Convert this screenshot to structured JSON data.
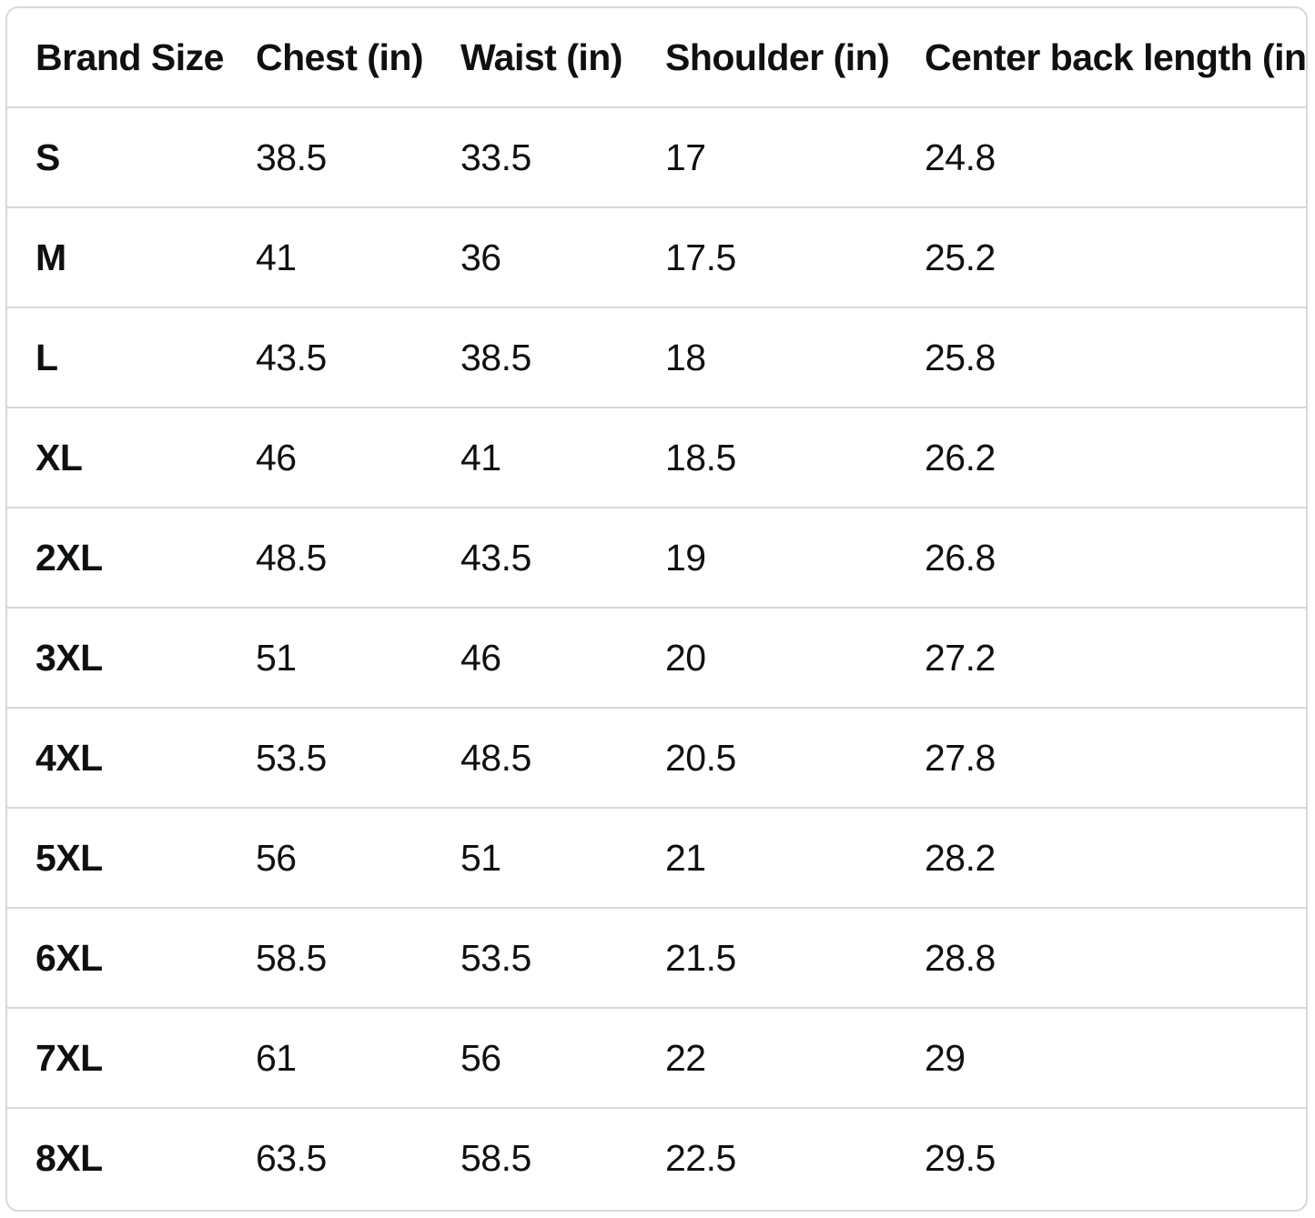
{
  "table": {
    "headers": [
      "Brand Size",
      "Chest (in)",
      "Waist (in)",
      "Shoulder (in)",
      "Center back length (in)"
    ],
    "rows": [
      [
        "S",
        "38.5",
        "33.5",
        "17",
        "24.8"
      ],
      [
        "M",
        "41",
        "36",
        "17.5",
        "25.2"
      ],
      [
        "L",
        "43.5",
        "38.5",
        "18",
        "25.8"
      ],
      [
        "XL",
        "46",
        "41",
        "18.5",
        "26.2"
      ],
      [
        "2XL",
        "48.5",
        "43.5",
        "19",
        "26.8"
      ],
      [
        "3XL",
        "51",
        "46",
        "20",
        "27.2"
      ],
      [
        "4XL",
        "53.5",
        "48.5",
        "20.5",
        "27.8"
      ],
      [
        "5XL",
        "56",
        "51",
        "21",
        "28.2"
      ],
      [
        "6XL",
        "58.5",
        "53.5",
        "21.5",
        "28.8"
      ],
      [
        "7XL",
        "61",
        "56",
        "22",
        "29"
      ],
      [
        "8XL",
        "63.5",
        "58.5",
        "22.5",
        "29.5"
      ]
    ]
  },
  "colors": {
    "border": "#d5d9d9",
    "text": "#0f1111",
    "background": "#ffffff"
  }
}
